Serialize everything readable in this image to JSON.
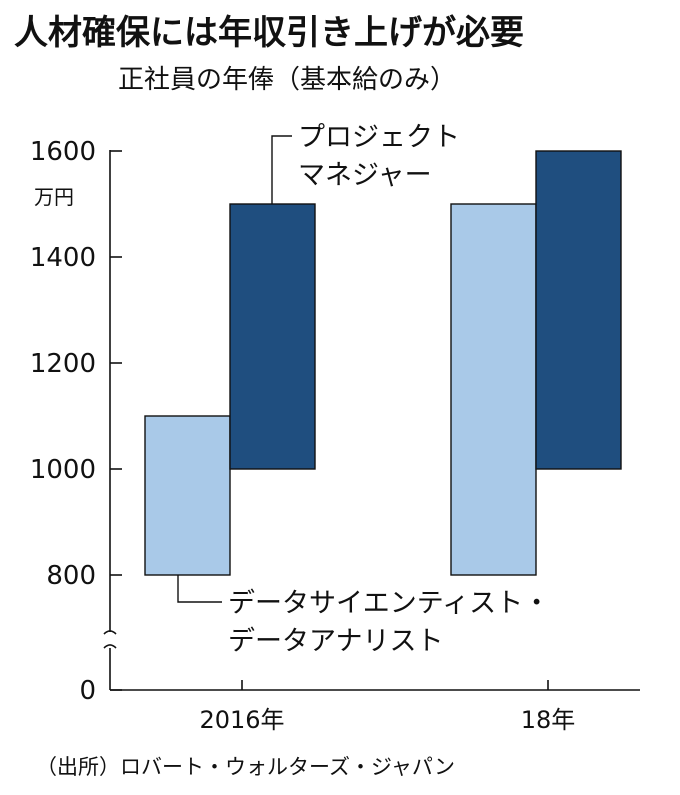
{
  "chart_data": {
    "type": "floating-bar",
    "title": "人材確保には年収引き上げが必要",
    "subtitle": "正社員の年俸（基本給のみ）",
    "ylabel": "万円",
    "ylim": [
      0,
      1600
    ],
    "axis_break_between": [
      0,
      800
    ],
    "y_ticks": [
      "1600",
      "1400",
      "1200",
      "1000",
      "800",
      "0"
    ],
    "y_tick_values": [
      1600,
      1400,
      1200,
      1000,
      800,
      0
    ],
    "categories": [
      "2016年",
      "18年"
    ],
    "series": [
      {
        "name": "データサイエンティスト・データアナリスト",
        "name_line1": "データサイエンティスト・",
        "name_line2": "データアナリスト",
        "color": "#a9c9e8",
        "ranges": [
          [
            800,
            1100
          ],
          [
            800,
            1500
          ]
        ]
      },
      {
        "name": "プロジェクトマネジャー",
        "name_line1": "プロジェクト",
        "name_line2": "マネジャー",
        "color": "#1f4e7f",
        "ranges": [
          [
            1000,
            1500
          ],
          [
            1000,
            1600
          ]
        ]
      }
    ],
    "source": "（出所）ロバート・ウォルターズ・ジャパン"
  }
}
